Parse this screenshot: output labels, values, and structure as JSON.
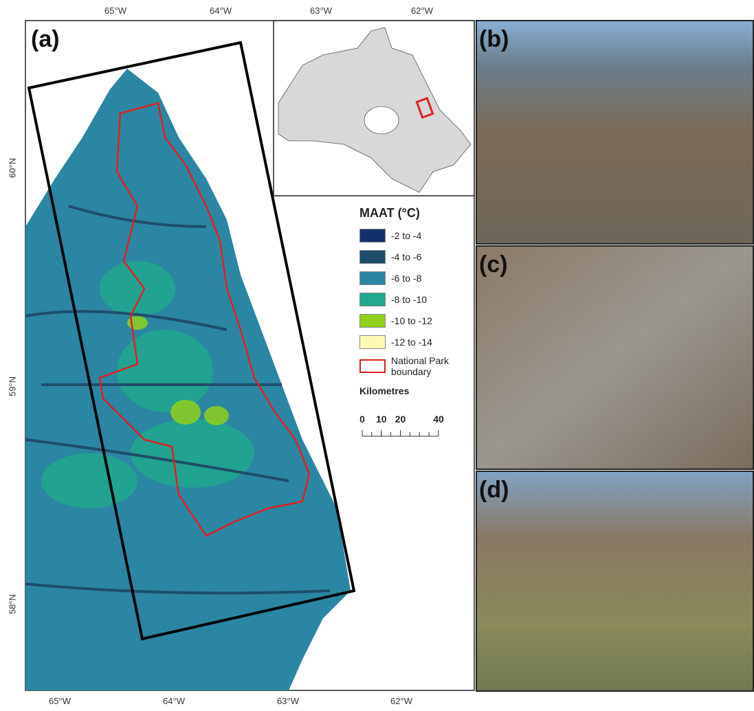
{
  "axes": {
    "top": [
      "65°W",
      "64°W",
      "63°W",
      "62°W"
    ],
    "bottom": [
      "65°W",
      "64°W",
      "63°W",
      "62°W"
    ],
    "left": [
      "60°N",
      "59°N",
      "58°N"
    ]
  },
  "panels": [
    "(a)",
    "(b)",
    "(c)",
    "(d)"
  ],
  "legend": {
    "title": "MAAT (°C)",
    "items": [
      {
        "label": "-2 to -4",
        "color": "#13306e"
      },
      {
        "label": "-4 to -6",
        "color": "#1e4d6b"
      },
      {
        "label": "-6 to -8",
        "color": "#2b86a3"
      },
      {
        "label": "-8 to -10",
        "color": "#20a98c"
      },
      {
        "label": "-10 to -12",
        "color": "#8fd11c"
      },
      {
        "label": "-12 to -14",
        "color": "#fdfab4"
      }
    ],
    "boundary": "National Park boundary",
    "scale": {
      "title": "Kilometres",
      "ticks": [
        0,
        10,
        20,
        40
      ]
    }
  }
}
